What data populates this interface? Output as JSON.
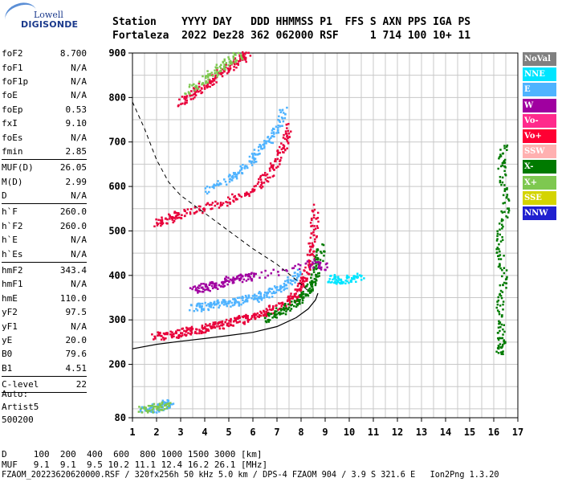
{
  "logo": {
    "top": "Lowell",
    "bottom": "DIGISONDE"
  },
  "header": {
    "line1": "Station    YYYY DAY   DDD HHMMSS P1  FFS S AXN PPS IGA PS",
    "line2": "Fortaleza  2022 Dez28 362 062000 RSF     1 714 100 10+ 11"
  },
  "params": [
    {
      "k": "foF2",
      "v": "8.700",
      "sep": false
    },
    {
      "k": "foF1",
      "v": "N/A",
      "sep": false
    },
    {
      "k": "foF1p",
      "v": "N/A",
      "sep": false
    },
    {
      "k": "foE",
      "v": "N/A",
      "sep": false
    },
    {
      "k": "foEp",
      "v": "0.53",
      "sep": false
    },
    {
      "k": "fxI",
      "v": "9.10",
      "sep": false
    },
    {
      "k": "foEs",
      "v": "N/A",
      "sep": false
    },
    {
      "k": "fmin",
      "v": "2.85",
      "sep": true
    },
    {
      "k": "MUF(D)",
      "v": "26.05",
      "sep": false
    },
    {
      "k": "M(D)",
      "v": "2.99",
      "sep": false
    },
    {
      "k": "D",
      "v": "N/A",
      "sep": true
    },
    {
      "k": "h`F",
      "v": "260.0",
      "sep": false
    },
    {
      "k": "h`F2",
      "v": "260.0",
      "sep": false
    },
    {
      "k": "h`E",
      "v": "N/A",
      "sep": false
    },
    {
      "k": "h`Es",
      "v": "N/A",
      "sep": true
    },
    {
      "k": "hmF2",
      "v": "343.4",
      "sep": false
    },
    {
      "k": "hmF1",
      "v": "N/A",
      "sep": false
    },
    {
      "k": "hmE",
      "v": "110.0",
      "sep": false
    },
    {
      "k": "yF2",
      "v": "97.5",
      "sep": false
    },
    {
      "k": "yF1",
      "v": "N/A",
      "sep": false
    },
    {
      "k": "yE",
      "v": "20.0",
      "sep": false
    },
    {
      "k": "B0",
      "v": "79.6",
      "sep": false
    },
    {
      "k": "B1",
      "v": "4.51",
      "sep": true
    },
    {
      "k": "C-level",
      "v": "22",
      "sep": true
    }
  ],
  "auto": {
    "l1": "Auto:",
    "l2": "Artist5",
    "l3": "500200"
  },
  "legend": [
    {
      "label": "NoVal",
      "color": "#808080"
    },
    {
      "label": "NNE",
      "color": "#00e5ff"
    },
    {
      "label": "E",
      "color": "#4fb3ff"
    },
    {
      "label": "W",
      "color": "#a000a0"
    },
    {
      "label": "Vo-",
      "color": "#ff2a8c"
    },
    {
      "label": "Vo+",
      "color": "#ff0033"
    },
    {
      "label": "SSW",
      "color": "#ffb0b0"
    },
    {
      "label": "X-",
      "color": "#007a00"
    },
    {
      "label": "X+",
      "color": "#7ec850"
    },
    {
      "label": "SSE",
      "color": "#d4d400"
    },
    {
      "label": "NNW",
      "color": "#2020d0"
    }
  ],
  "footer": {
    "d": "D     100  200  400  600  800 1000 1500 3000 [km]",
    "muf": "MUF   9.1  9.1  9.5 10.2 11.1 12.4 16.2 26.1 [MHz]",
    "file": "FZAOM_20223620620000.RSF / 320fx256h 50 kHz 5.0 km / DPS-4 FZAOM 904 / 3.9 S 321.6 E   Ion2Png 1.3.20"
  },
  "chart_data": {
    "type": "scatter",
    "title": "",
    "xlabel": "",
    "ylabel": "",
    "xlim": [
      1,
      17
    ],
    "ylim": [
      80,
      900
    ],
    "xticks": [
      1,
      2,
      3,
      4,
      5,
      6,
      7,
      8,
      9,
      10,
      11,
      12,
      13,
      14,
      15,
      16,
      17
    ],
    "yticks": [
      80,
      200,
      300,
      400,
      500,
      600,
      700,
      800,
      900
    ],
    "grid": true,
    "series": [
      {
        "key": "o_trace",
        "color": "#e8003a",
        "points": [
          [
            1.9,
            265
          ],
          [
            2.5,
            268
          ],
          [
            3.0,
            272
          ],
          [
            3.5,
            278
          ],
          [
            4.0,
            283
          ],
          [
            4.5,
            289
          ],
          [
            5.0,
            296
          ],
          [
            5.5,
            302
          ],
          [
            6.0,
            310
          ],
          [
            6.5,
            318
          ],
          [
            7.0,
            330
          ],
          [
            7.5,
            345
          ],
          [
            7.8,
            360
          ],
          [
            8.0,
            380
          ],
          [
            8.2,
            410
          ],
          [
            8.4,
            450
          ],
          [
            8.5,
            500
          ],
          [
            8.55,
            560
          ]
        ]
      },
      {
        "key": "x_trace",
        "color": "#007a00",
        "points": [
          [
            6.5,
            305
          ],
          [
            7.0,
            318
          ],
          [
            7.5,
            332
          ],
          [
            8.0,
            350
          ],
          [
            8.3,
            370
          ],
          [
            8.5,
            395
          ],
          [
            8.7,
            430
          ],
          [
            8.8,
            470
          ]
        ]
      },
      {
        "key": "e_cloud",
        "color": "#4fb3ff",
        "points": [
          [
            3.5,
            330
          ],
          [
            4.0,
            330
          ],
          [
            4.5,
            340
          ],
          [
            5.0,
            340
          ],
          [
            5.5,
            345
          ],
          [
            6.0,
            350
          ],
          [
            6.5,
            360
          ],
          [
            7.0,
            370
          ],
          [
            7.5,
            390
          ],
          [
            8.0,
            410
          ]
        ]
      },
      {
        "key": "w_cloud",
        "color": "#a000a0",
        "points": [
          [
            3.5,
            370
          ],
          [
            4.0,
            375
          ],
          [
            4.5,
            380
          ],
          [
            5.0,
            390
          ],
          [
            5.5,
            395
          ],
          [
            6.0,
            400
          ],
          [
            8.5,
            430
          ],
          [
            9.0,
            420
          ]
        ]
      },
      {
        "key": "nne_cloud",
        "color": "#00e5ff",
        "points": [
          [
            9.2,
            395
          ],
          [
            9.5,
            390
          ],
          [
            10.0,
            395
          ],
          [
            10.5,
            400
          ]
        ]
      },
      {
        "key": "second_hop",
        "color": "#e8003a",
        "points": [
          [
            2.0,
            520
          ],
          [
            2.5,
            530
          ],
          [
            3.0,
            540
          ],
          [
            4.0,
            555
          ],
          [
            5.0,
            570
          ],
          [
            6.0,
            595
          ],
          [
            6.5,
            620
          ],
          [
            7.0,
            660
          ],
          [
            7.3,
            700
          ],
          [
            7.5,
            740
          ]
        ]
      },
      {
        "key": "second_hop_e",
        "color": "#4fb3ff",
        "points": [
          [
            4.0,
            590
          ],
          [
            5.0,
            620
          ],
          [
            5.5,
            640
          ],
          [
            6.0,
            670
          ],
          [
            6.5,
            700
          ],
          [
            7.0,
            730
          ],
          [
            7.3,
            780
          ]
        ]
      },
      {
        "key": "third_hop",
        "color": "#e8003a",
        "points": [
          [
            3.0,
            790
          ],
          [
            3.5,
            810
          ],
          [
            4.0,
            830
          ],
          [
            4.5,
            850
          ],
          [
            5.0,
            870
          ],
          [
            5.5,
            890
          ],
          [
            5.8,
            900
          ]
        ]
      },
      {
        "key": "third_hop_g",
        "color": "#7ec850",
        "points": [
          [
            3.3,
            815
          ],
          [
            4.0,
            845
          ],
          [
            4.5,
            865
          ],
          [
            5.0,
            885
          ],
          [
            5.5,
            898
          ]
        ]
      },
      {
        "key": "low_trace",
        "color": "#4fb3ff",
        "points": [
          [
            1.4,
            100
          ],
          [
            1.8,
            100
          ],
          [
            2.2,
            110
          ],
          [
            2.6,
            115
          ]
        ]
      },
      {
        "key": "low_trace_g",
        "color": "#7ec850",
        "points": [
          [
            1.3,
            98
          ],
          [
            2.0,
            105
          ],
          [
            2.5,
            112
          ]
        ]
      },
      {
        "key": "right_strip",
        "color": "#007a00",
        "points": [
          [
            16.2,
            230
          ],
          [
            16.3,
            260
          ],
          [
            16.2,
            330
          ],
          [
            16.4,
            400
          ],
          [
            16.2,
            480
          ],
          [
            16.5,
            560
          ],
          [
            16.3,
            640
          ],
          [
            16.4,
            700
          ]
        ]
      }
    ],
    "profile_curve": [
      [
        1.0,
        235
      ],
      [
        2.0,
        245
      ],
      [
        3.0,
        252
      ],
      [
        4.0,
        258
      ],
      [
        5.0,
        265
      ],
      [
        6.0,
        272
      ],
      [
        7.0,
        285
      ],
      [
        7.8,
        305
      ],
      [
        8.3,
        325
      ],
      [
        8.6,
        345
      ],
      [
        8.7,
        360
      ]
    ],
    "dashed_curve": [
      [
        1.0,
        790
      ],
      [
        1.5,
        730
      ],
      [
        2.0,
        660
      ],
      [
        2.5,
        610
      ],
      [
        3.0,
        580
      ],
      [
        4.0,
        540
      ],
      [
        5.0,
        500
      ],
      [
        6.0,
        460
      ],
      [
        7.0,
        425
      ],
      [
        7.8,
        390
      ],
      [
        8.3,
        365
      ]
    ]
  }
}
